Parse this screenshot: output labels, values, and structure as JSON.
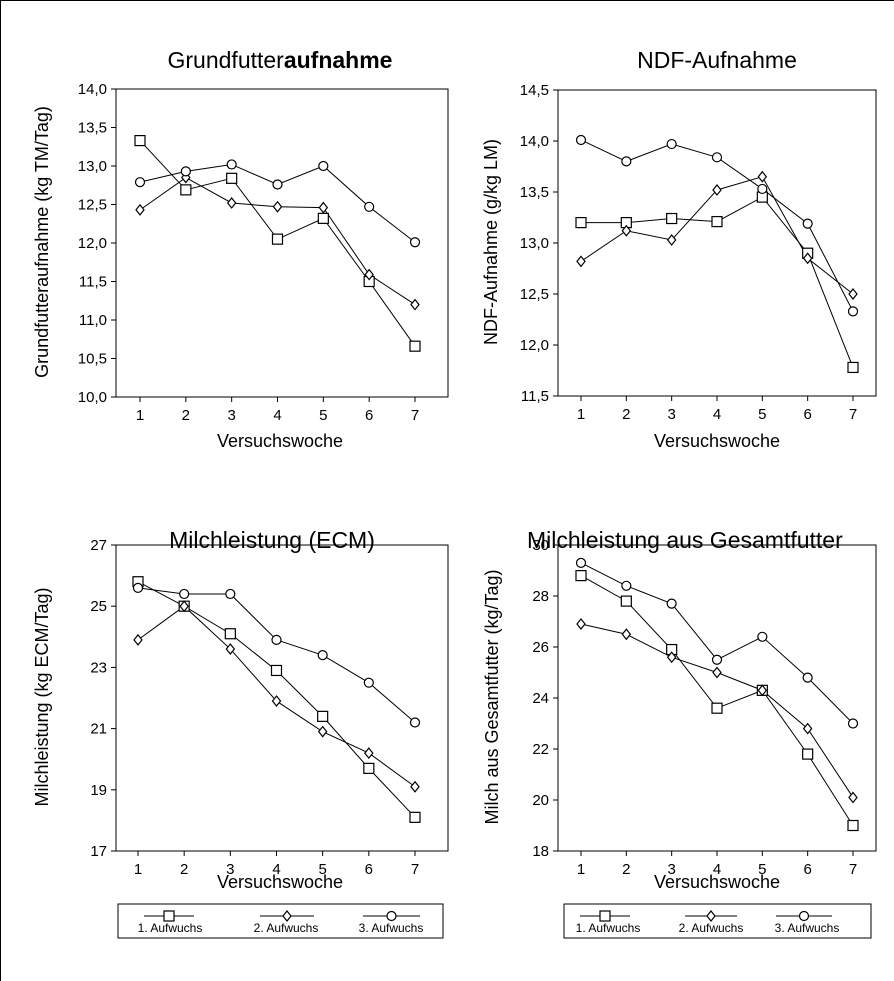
{
  "chart_data": [
    {
      "type": "line",
      "title": "Grundfutter",
      "title_bold": "aufnahme",
      "xlabel": "Versuchswoche",
      "ylabel": "Grundfutteraufnahme (kg TM/Tag)",
      "x": [
        1,
        2,
        3,
        4,
        5,
        6,
        7
      ],
      "ylim": [
        10.0,
        14.0
      ],
      "yticks": [
        10.0,
        10.5,
        11.0,
        11.5,
        12.0,
        12.5,
        13.0,
        13.5,
        14.0
      ],
      "ytick_labels": [
        "10,0",
        "10,5",
        "11,0",
        "11,5",
        "12,0",
        "12,5",
        "13,0",
        "13,5",
        "14,0"
      ],
      "series": [
        {
          "name": "1. Aufwuchs",
          "marker": "square",
          "values": [
            13.33,
            12.69,
            12.84,
            12.05,
            12.32,
            11.5,
            10.66
          ]
        },
        {
          "name": "2. Aufwuchs",
          "marker": "diamond",
          "values": [
            12.43,
            12.85,
            12.52,
            12.47,
            12.46,
            11.59,
            11.2
          ]
        },
        {
          "name": "3. Aufwuchs",
          "marker": "circle",
          "values": [
            12.79,
            12.93,
            13.02,
            12.76,
            13.0,
            12.47,
            12.01
          ]
        }
      ]
    },
    {
      "type": "line",
      "title": "NDF-Aufnahme",
      "title_bold": "",
      "xlabel": "Versuchswoche",
      "ylabel": "NDF-Aufnahme (g/kg LM)",
      "x": [
        1,
        2,
        3,
        4,
        5,
        6,
        7
      ],
      "ylim": [
        11.5,
        14.5
      ],
      "yticks": [
        11.5,
        12.0,
        12.5,
        13.0,
        13.5,
        14.0,
        14.5
      ],
      "ytick_labels": [
        "11,5",
        "12,0",
        "12,5",
        "13,0",
        "13,5",
        "14,0",
        "14,5"
      ],
      "series": [
        {
          "name": "1. Aufwuchs",
          "marker": "square",
          "values": [
            13.2,
            13.2,
            13.24,
            13.21,
            13.45,
            12.9,
            11.78
          ]
        },
        {
          "name": "2. Aufwuchs",
          "marker": "diamond",
          "values": [
            12.82,
            13.12,
            13.03,
            13.52,
            13.65,
            12.85,
            12.5
          ]
        },
        {
          "name": "3. Aufwuchs",
          "marker": "circle",
          "values": [
            14.01,
            13.8,
            13.97,
            13.84,
            13.53,
            13.19,
            12.33
          ]
        }
      ]
    },
    {
      "type": "line",
      "title": "Milchleistung (ECM)",
      "title_bold": "",
      "xlabel": "Versuchswoche",
      "ylabel": "Milchleistung (kg ECM/Tag)",
      "x": [
        1,
        2,
        3,
        4,
        5,
        6,
        7
      ],
      "ylim": [
        17,
        27
      ],
      "yticks": [
        17,
        19,
        21,
        23,
        25,
        27
      ],
      "ytick_labels": [
        "17",
        "19",
        "21",
        "23",
        "25",
        "27"
      ],
      "series": [
        {
          "name": "1. Aufwuchs",
          "marker": "square",
          "values": [
            25.8,
            25.0,
            24.1,
            22.9,
            21.4,
            19.7,
            18.1
          ]
        },
        {
          "name": "2. Aufwuchs",
          "marker": "diamond",
          "values": [
            23.9,
            25.0,
            23.6,
            21.9,
            20.9,
            20.2,
            19.1
          ]
        },
        {
          "name": "3. Aufwuchs",
          "marker": "circle",
          "values": [
            25.6,
            25.4,
            25.4,
            23.9,
            23.4,
            22.5,
            21.2
          ]
        }
      ]
    },
    {
      "type": "line",
      "title": "Milchleistung aus Gesamtfutter",
      "title_bold": "",
      "xlabel": "Versuchswoche",
      "ylabel": "Milch aus Gesamtfutter (kg/Tag)",
      "x": [
        1,
        2,
        3,
        4,
        5,
        6,
        7
      ],
      "ylim": [
        18,
        30
      ],
      "yticks": [
        18,
        20,
        22,
        24,
        26,
        28,
        30
      ],
      "ytick_labels": [
        "18",
        "20",
        "22",
        "24",
        "26",
        "28",
        "30"
      ],
      "series": [
        {
          "name": "1. Aufwuchs",
          "marker": "square",
          "values": [
            28.8,
            27.8,
            25.9,
            23.6,
            24.3,
            21.8,
            19.0
          ]
        },
        {
          "name": "2. Aufwuchs",
          "marker": "diamond",
          "values": [
            26.9,
            26.5,
            25.6,
            25.0,
            24.3,
            22.8,
            20.1
          ]
        },
        {
          "name": "3. Aufwuchs",
          "marker": "circle",
          "values": [
            29.3,
            28.4,
            27.7,
            25.5,
            26.4,
            24.8,
            23.0
          ]
        }
      ]
    }
  ],
  "legend": {
    "items": [
      "1. Aufwuchs",
      "2. Aufwuchs",
      "3. Aufwuchs"
    ]
  }
}
